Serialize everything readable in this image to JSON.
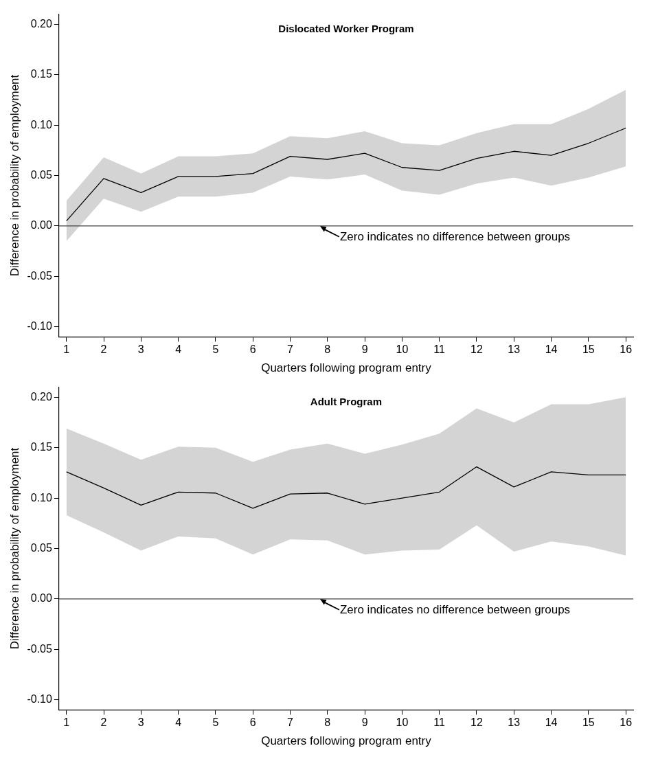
{
  "chart_data": [
    {
      "type": "line",
      "title": "Dislocated Worker Program",
      "xlabel": "Quarters following program entry",
      "ylabel": "Difference in probability of employment",
      "x": [
        1,
        2,
        3,
        4,
        5,
        6,
        7,
        8,
        9,
        10,
        11,
        12,
        13,
        14,
        15,
        16
      ],
      "series": [
        {
          "color": "#000000",
          "values": [
            0.005,
            0.047,
            0.033,
            0.049,
            0.049,
            0.052,
            0.069,
            0.066,
            0.072,
            0.058,
            0.055,
            0.067,
            0.074,
            0.07,
            0.082,
            0.097
          ],
          "lower": [
            -0.015,
            0.027,
            0.014,
            0.029,
            0.029,
            0.033,
            0.049,
            0.046,
            0.051,
            0.035,
            0.031,
            0.042,
            0.048,
            0.04,
            0.048,
            0.059
          ],
          "upper": [
            0.025,
            0.068,
            0.052,
            0.069,
            0.069,
            0.072,
            0.089,
            0.087,
            0.094,
            0.082,
            0.08,
            0.092,
            0.101,
            0.101,
            0.116,
            0.135
          ]
        }
      ],
      "xlim": [
        0.8,
        16.2
      ],
      "xticks": [
        1,
        2,
        3,
        4,
        5,
        6,
        7,
        8,
        9,
        10,
        11,
        12,
        13,
        14,
        15,
        16
      ],
      "ylim": [
        -0.11,
        0.21
      ],
      "yticks": [
        {
          "value": -0.1,
          "label": "-0.10"
        },
        {
          "value": -0.05,
          "label": "-0.05"
        },
        {
          "value": 0,
          "label": "0.00"
        },
        {
          "value": 0.05,
          "label": "0.05"
        },
        {
          "value": 0.1,
          "label": "0.10"
        },
        {
          "value": 0.15,
          "label": "0.15"
        },
        {
          "value": 0.2,
          "label": "0.20"
        }
      ],
      "ref_lines": [
        {
          "axis": "y",
          "value": 0,
          "color": "#444444"
        }
      ],
      "annotations": [
        {
          "text": "Zero indicates no difference between groups",
          "x": 7.8,
          "y": 0
        }
      ],
      "grid": false,
      "legend": false,
      "marker": "none",
      "line_style": "solid"
    },
    {
      "type": "line",
      "title": "Adult Program",
      "xlabel": "Quarters following program entry",
      "ylabel": "Difference in probability of employment",
      "x": [
        1,
        2,
        3,
        4,
        5,
        6,
        7,
        8,
        9,
        10,
        11,
        12,
        13,
        14,
        15,
        16
      ],
      "series": [
        {
          "color": "#000000",
          "values": [
            0.126,
            0.11,
            0.093,
            0.106,
            0.105,
            0.09,
            0.104,
            0.105,
            0.094,
            0.1,
            0.106,
            0.131,
            0.111,
            0.126,
            0.123,
            0.123
          ],
          "lower": [
            0.083,
            0.066,
            0.048,
            0.062,
            0.06,
            0.044,
            0.059,
            0.058,
            0.044,
            0.048,
            0.049,
            0.073,
            0.047,
            0.057,
            0.052,
            0.043
          ],
          "upper": [
            0.169,
            0.154,
            0.138,
            0.151,
            0.15,
            0.136,
            0.148,
            0.154,
            0.144,
            0.153,
            0.164,
            0.189,
            0.175,
            0.193,
            0.193,
            0.2
          ]
        }
      ],
      "xlim": [
        0.8,
        16.2
      ],
      "xticks": [
        1,
        2,
        3,
        4,
        5,
        6,
        7,
        8,
        9,
        10,
        11,
        12,
        13,
        14,
        15,
        16
      ],
      "ylim": [
        -0.11,
        0.21
      ],
      "yticks": [
        {
          "value": -0.1,
          "label": "-0.10"
        },
        {
          "value": -0.05,
          "label": "-0.05"
        },
        {
          "value": 0,
          "label": "0.00"
        },
        {
          "value": 0.05,
          "label": "0.05"
        },
        {
          "value": 0.1,
          "label": "0.10"
        },
        {
          "value": 0.15,
          "label": "0.15"
        },
        {
          "value": 0.2,
          "label": "0.20"
        }
      ],
      "ref_lines": [
        {
          "axis": "y",
          "value": 0,
          "color": "#444444"
        }
      ],
      "annotations": [
        {
          "text": "Zero indicates no difference between groups",
          "x": 7.8,
          "y": 0
        }
      ],
      "grid": false,
      "legend": false,
      "marker": "none",
      "line_style": "solid"
    }
  ]
}
